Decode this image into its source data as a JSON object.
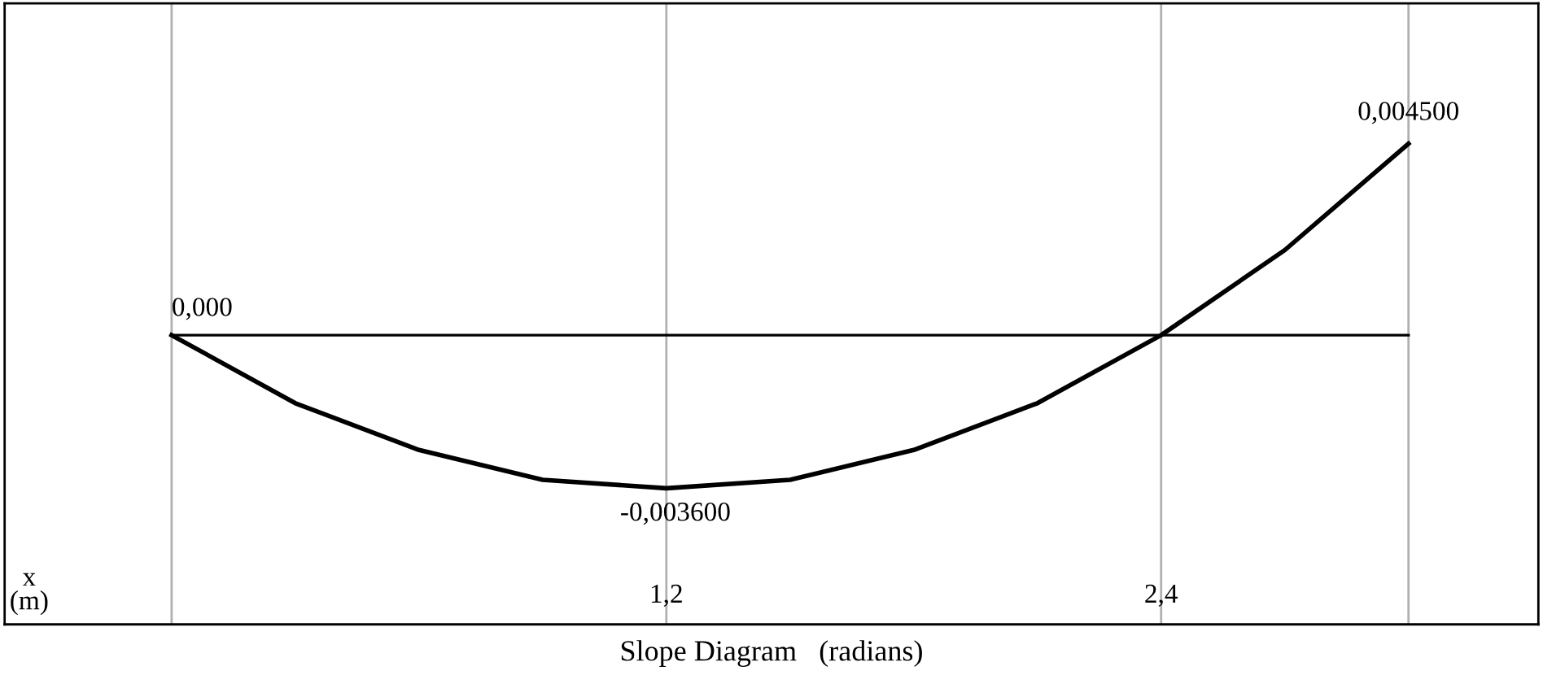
{
  "chart_data": {
    "type": "line",
    "title": "Slope Diagram   (radians)",
    "xlabel": "x\n(m)",
    "x": [
      0,
      0.3,
      0.6,
      0.9,
      1.2,
      1.5,
      1.8,
      2.1,
      2.4,
      2.7,
      3.0
    ],
    "series": [
      {
        "color": "#000000",
        "values": [
          0,
          -0.0016,
          -0.0027,
          -0.0034,
          -0.0036,
          -0.0034,
          -0.0027,
          -0.0016,
          0,
          0.002,
          0.0045
        ],
        "value_labels": [
          "0,000",
          null,
          null,
          null,
          "-0,003600",
          null,
          null,
          null,
          null,
          null,
          "0,004500"
        ]
      }
    ],
    "xlim": [
      -0.405,
      3.315
    ],
    "xticks": [
      {
        "value": 0,
        "label": null
      },
      {
        "value": 1.2,
        "label": "1,2"
      },
      {
        "value": 2.4,
        "label": "2,4"
      },
      {
        "value": 3.0,
        "label": null
      }
    ],
    "ylim": [
      -0.0068,
      0.0078
    ],
    "tick_labels": "x",
    "grid": "x",
    "marker": "none",
    "line_style": "solid",
    "ref_lines": [
      {
        "axis": "y",
        "value": 0,
        "color": "#000000"
      }
    ]
  }
}
